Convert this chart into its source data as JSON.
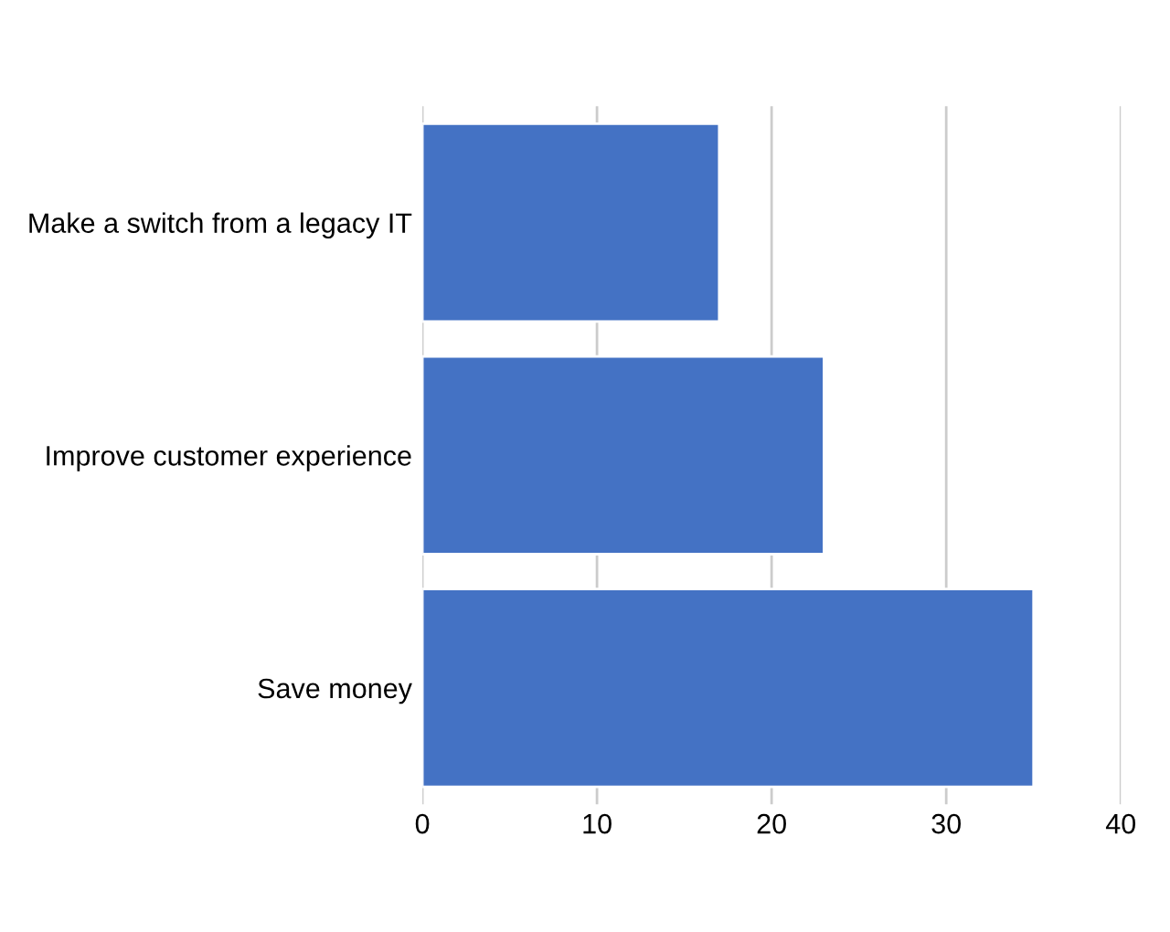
{
  "chart_data": {
    "type": "bar",
    "orientation": "horizontal",
    "categories": [
      "Make a switch from a legacy IT",
      "Improve customer experience",
      "Save money"
    ],
    "values": [
      17,
      23,
      35
    ],
    "color": "#4472c4",
    "xlim": [
      0,
      40
    ],
    "xticks": [
      0,
      10,
      20,
      30,
      40
    ],
    "grid": "x"
  }
}
